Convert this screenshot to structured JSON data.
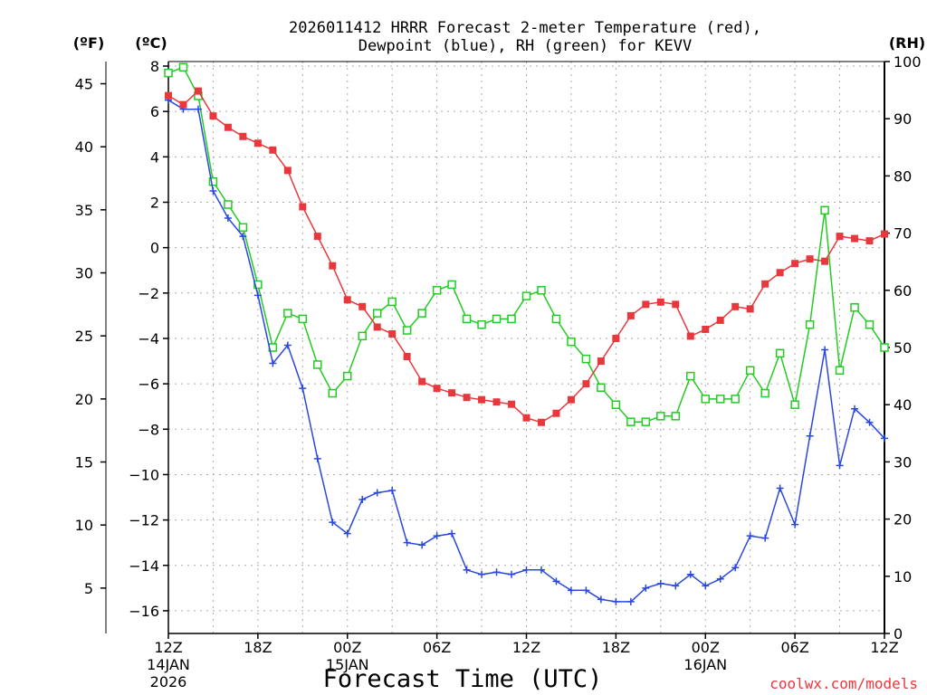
{
  "chart_data": {
    "type": "line",
    "title": "2026011412 HRRR Forecast 2-meter Temperature (red),",
    "subtitle": "Dewpoint (blue), RH (green) for KEVV",
    "xlabel": "Forecast Time (UTC)",
    "watermark": "coolwx.com/models",
    "axis_units": {
      "fahrenheit": "(ºF)",
      "celsius": "(ºC)",
      "rh": "(RH)"
    },
    "x_range": [
      0,
      48
    ],
    "ylim_c": [
      -17.0,
      8.2
    ],
    "ylim_rh": [
      0,
      100
    ],
    "c_ticks": [
      8,
      6,
      4,
      2,
      0,
      -2,
      -4,
      -6,
      -8,
      -10,
      -12,
      -14,
      -16
    ],
    "c_tick_labels": [
      "8",
      "6",
      "4",
      "2",
      "0",
      "−2",
      "−4",
      "−6",
      "−8",
      "−10",
      "−12",
      "−14",
      "−16"
    ],
    "f_ticks": [
      45,
      40,
      35,
      30,
      25,
      20,
      15,
      10,
      5
    ],
    "f_tick_labels": [
      "45",
      "40",
      "35",
      "30",
      "25",
      "20",
      "15",
      "10",
      "5"
    ],
    "rh_ticks": [
      100,
      90,
      80,
      70,
      60,
      50,
      40,
      30,
      20,
      10,
      0
    ],
    "rh_tick_labels": [
      "100",
      "90",
      "80",
      "70",
      "60",
      "50",
      "40",
      "30",
      "20",
      "10",
      "0"
    ],
    "x_ticks": [
      {
        "hour": 0,
        "label": "12Z",
        "sub1": "14JAN",
        "sub2": "2026"
      },
      {
        "hour": 6,
        "label": "18Z",
        "sub1": "",
        "sub2": ""
      },
      {
        "hour": 12,
        "label": "00Z",
        "sub1": "15JAN",
        "sub2": ""
      },
      {
        "hour": 18,
        "label": "06Z",
        "sub1": "",
        "sub2": ""
      },
      {
        "hour": 24,
        "label": "12Z",
        "sub1": "",
        "sub2": ""
      },
      {
        "hour": 30,
        "label": "18Z",
        "sub1": "",
        "sub2": ""
      },
      {
        "hour": 36,
        "label": "00Z",
        "sub1": "16JAN",
        "sub2": ""
      },
      {
        "hour": 42,
        "label": "06Z",
        "sub1": "",
        "sub2": ""
      },
      {
        "hour": 48,
        "label": "12Z",
        "sub1": "",
        "sub2": ""
      }
    ],
    "series": [
      {
        "name": "Temperature (°C)",
        "axis": "c",
        "color": "#e8383d",
        "marker": "filled-square",
        "values": [
          6.7,
          6.3,
          6.9,
          5.8,
          5.3,
          4.9,
          4.6,
          4.3,
          3.4,
          1.8,
          0.5,
          -0.8,
          -2.3,
          -2.6,
          -3.5,
          -3.8,
          -4.8,
          -5.9,
          -6.2,
          -6.4,
          -6.6,
          -6.7,
          -6.8,
          -6.9,
          -7.5,
          -7.7,
          -7.3,
          -6.7,
          -6.0,
          -5.0,
          -4.0,
          -3.0,
          -2.5,
          -2.4,
          -2.5,
          -3.9,
          -3.6,
          -3.2,
          -2.6,
          -2.7,
          -1.6,
          -1.1,
          -0.7,
          -0.5,
          -0.6,
          0.5,
          0.4,
          0.3,
          0.6
        ]
      },
      {
        "name": "Dewpoint (°C)",
        "axis": "c",
        "color": "#2a48e0",
        "marker": "plus",
        "values": [
          6.5,
          6.1,
          6.1,
          2.5,
          1.3,
          0.5,
          -2.1,
          -5.1,
          -4.3,
          -6.2,
          -9.3,
          -12.1,
          -12.6,
          -11.1,
          -10.8,
          -10.7,
          -13.0,
          -13.1,
          -12.7,
          -12.6,
          -14.2,
          -14.4,
          -14.3,
          -14.4,
          -14.2,
          -14.2,
          -14.7,
          -15.1,
          -15.1,
          -15.5,
          -15.6,
          -15.6,
          -15.0,
          -14.8,
          -14.9,
          -14.4,
          -14.9,
          -14.6,
          -14.1,
          -12.7,
          -12.8,
          -10.6,
          -12.2,
          -8.3,
          -4.5,
          -9.6,
          -7.1,
          -7.7,
          -8.4
        ]
      },
      {
        "name": "RH (%)",
        "axis": "rh",
        "color": "#22cc22",
        "marker": "open-square",
        "values": [
          98,
          99,
          94,
          79,
          75,
          71,
          61,
          50,
          56,
          55,
          47,
          42,
          45,
          52,
          56,
          58,
          53,
          56,
          60,
          61,
          55,
          54,
          55,
          55,
          59,
          60,
          55,
          51,
          48,
          43,
          40,
          37,
          37,
          38,
          38,
          45,
          41,
          41,
          41,
          46,
          42,
          49,
          40,
          54,
          74,
          46,
          57,
          54,
          50
        ]
      }
    ]
  }
}
